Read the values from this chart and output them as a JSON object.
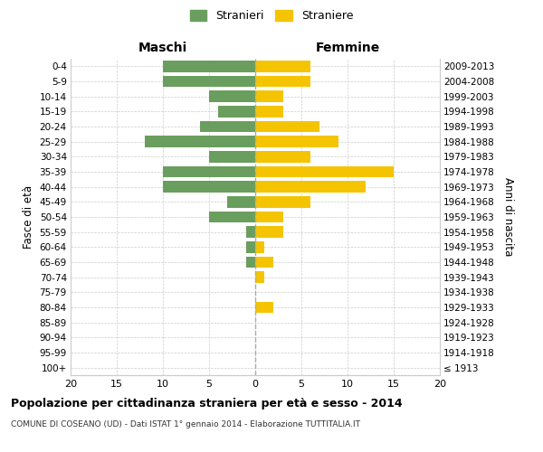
{
  "age_groups": [
    "100+",
    "95-99",
    "90-94",
    "85-89",
    "80-84",
    "75-79",
    "70-74",
    "65-69",
    "60-64",
    "55-59",
    "50-54",
    "45-49",
    "40-44",
    "35-39",
    "30-34",
    "25-29",
    "20-24",
    "15-19",
    "10-14",
    "5-9",
    "0-4"
  ],
  "birth_years": [
    "≤ 1913",
    "1914-1918",
    "1919-1923",
    "1924-1928",
    "1929-1933",
    "1934-1938",
    "1939-1943",
    "1944-1948",
    "1949-1953",
    "1954-1958",
    "1959-1963",
    "1964-1968",
    "1969-1973",
    "1974-1978",
    "1979-1983",
    "1984-1988",
    "1989-1993",
    "1994-1998",
    "1999-2003",
    "2004-2008",
    "2009-2013"
  ],
  "maschi": [
    0,
    0,
    0,
    0,
    0,
    0,
    0,
    1,
    1,
    1,
    5,
    3,
    10,
    10,
    5,
    12,
    6,
    4,
    5,
    10,
    10
  ],
  "femmine": [
    0,
    0,
    0,
    0,
    2,
    0,
    1,
    2,
    1,
    3,
    3,
    6,
    12,
    15,
    6,
    9,
    7,
    3,
    3,
    6,
    6
  ],
  "maschi_color": "#6a9e5e",
  "femmine_color": "#f5c400",
  "background_color": "#ffffff",
  "grid_color": "#cccccc",
  "title": "Popolazione per cittadinanza straniera per età e sesso - 2014",
  "subtitle": "COMUNE DI COSEANO (UD) - Dati ISTAT 1° gennaio 2014 - Elaborazione TUTTITALIA.IT",
  "xlabel_left": "Maschi",
  "xlabel_right": "Femmine",
  "ylabel_left": "Fasce di età",
  "ylabel_right": "Anni di nascita",
  "xlim": 20,
  "legend_stranieri": "Stranieri",
  "legend_straniere": "Straniere"
}
